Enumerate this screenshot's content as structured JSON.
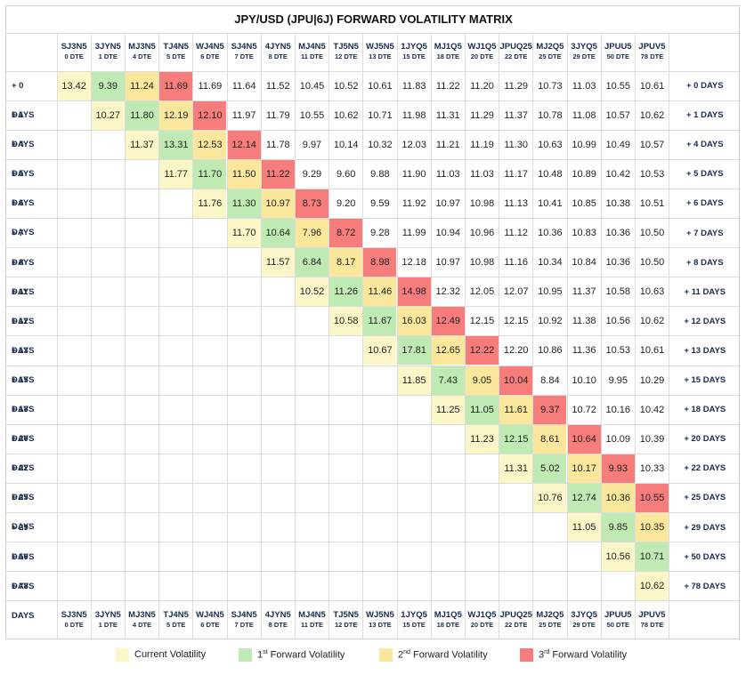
{
  "chart_data": {
    "type": "heatmap",
    "title": "JPY/USD (JPU|6J) FORWARD VOLATILITY MATRIX",
    "columns": [
      {
        "code": "SJ3N5",
        "dte": "0 DTE"
      },
      {
        "code": "3JYN5",
        "dte": "1 DTE"
      },
      {
        "code": "MJ3N5",
        "dte": "4 DTE"
      },
      {
        "code": "TJ4N5",
        "dte": "5 DTE"
      },
      {
        "code": "WJ4N5",
        "dte": "6 DTE"
      },
      {
        "code": "SJ4N5",
        "dte": "7 DTE"
      },
      {
        "code": "4JYN5",
        "dte": "8 DTE"
      },
      {
        "code": "MJ4N5",
        "dte": "11 DTE"
      },
      {
        "code": "TJ5N5",
        "dte": "12 DTE"
      },
      {
        "code": "WJ5N5",
        "dte": "13 DTE"
      },
      {
        "code": "1JYQ5",
        "dte": "15 DTE"
      },
      {
        "code": "MJ1Q5",
        "dte": "18 DTE"
      },
      {
        "code": "WJ1Q5",
        "dte": "20 DTE"
      },
      {
        "code": "JPUQ25",
        "dte": "22 DTE"
      },
      {
        "code": "MJ2Q5",
        "dte": "25 DTE"
      },
      {
        "code": "3JYQ5",
        "dte": "29 DTE"
      },
      {
        "code": "JPUU5",
        "dte": "50 DTE"
      },
      {
        "code": "JPUV5",
        "dte": "78 DTE"
      }
    ],
    "rows": [
      "+ 0 DAYS",
      "+ 1 DAYS",
      "+ 4 DAYS",
      "+ 5 DAYS",
      "+ 6 DAYS",
      "+ 7 DAYS",
      "+ 8 DAYS",
      "+ 11 DAYS",
      "+ 12 DAYS",
      "+ 13 DAYS",
      "+ 15 DAYS",
      "+ 18 DAYS",
      "+ 20 DAYS",
      "+ 22 DAYS",
      "+ 25 DAYS",
      "+ 29 DAYS",
      "+ 50 DAYS",
      "+ 78 DAYS"
    ],
    "values": [
      [
        13.42,
        9.39,
        11.24,
        11.69,
        11.69,
        11.64,
        11.52,
        10.45,
        10.52,
        10.61,
        11.83,
        11.22,
        11.2,
        11.29,
        10.73,
        11.03,
        10.55,
        10.61
      ],
      [
        null,
        10.27,
        11.8,
        12.19,
        12.1,
        11.97,
        11.79,
        10.55,
        10.62,
        10.71,
        11.98,
        11.31,
        11.29,
        11.37,
        10.78,
        11.08,
        10.57,
        10.62
      ],
      [
        null,
        null,
        11.37,
        13.31,
        12.53,
        12.14,
        11.78,
        9.97,
        10.14,
        10.32,
        12.03,
        11.21,
        11.19,
        11.3,
        10.63,
        10.99,
        10.49,
        10.57
      ],
      [
        null,
        null,
        null,
        11.77,
        11.7,
        11.5,
        11.22,
        9.29,
        9.6,
        9.88,
        11.9,
        11.03,
        11.03,
        11.17,
        10.48,
        10.89,
        10.42,
        10.53
      ],
      [
        null,
        null,
        null,
        null,
        11.76,
        11.3,
        10.97,
        8.73,
        9.2,
        9.59,
        11.92,
        10.97,
        10.98,
        11.13,
        10.41,
        10.85,
        10.38,
        10.51
      ],
      [
        null,
        null,
        null,
        null,
        null,
        11.7,
        10.64,
        7.96,
        8.72,
        9.28,
        11.99,
        10.94,
        10.96,
        11.12,
        10.36,
        10.83,
        10.36,
        10.5
      ],
      [
        null,
        null,
        null,
        null,
        null,
        null,
        11.57,
        6.84,
        8.17,
        8.98,
        12.18,
        10.97,
        10.98,
        11.16,
        10.34,
        10.84,
        10.36,
        10.5
      ],
      [
        null,
        null,
        null,
        null,
        null,
        null,
        null,
        10.52,
        11.26,
        11.46,
        14.98,
        12.32,
        12.05,
        12.07,
        10.95,
        11.37,
        10.58,
        10.63
      ],
      [
        null,
        null,
        null,
        null,
        null,
        null,
        null,
        null,
        10.58,
        11.67,
        16.03,
        12.49,
        12.15,
        12.15,
        10.92,
        11.38,
        10.56,
        10.62
      ],
      [
        null,
        null,
        null,
        null,
        null,
        null,
        null,
        null,
        null,
        10.67,
        17.81,
        12.65,
        12.22,
        12.2,
        10.86,
        11.36,
        10.53,
        10.61
      ],
      [
        null,
        null,
        null,
        null,
        null,
        null,
        null,
        null,
        null,
        null,
        11.85,
        7.43,
        9.05,
        10.04,
        8.84,
        10.1,
        9.95,
        10.29
      ],
      [
        null,
        null,
        null,
        null,
        null,
        null,
        null,
        null,
        null,
        null,
        null,
        11.25,
        11.05,
        11.61,
        9.37,
        10.72,
        10.16,
        10.42
      ],
      [
        null,
        null,
        null,
        null,
        null,
        null,
        null,
        null,
        null,
        null,
        null,
        null,
        11.23,
        12.15,
        8.61,
        10.64,
        10.09,
        10.39
      ],
      [
        null,
        null,
        null,
        null,
        null,
        null,
        null,
        null,
        null,
        null,
        null,
        null,
        null,
        11.31,
        5.02,
        10.17,
        9.93,
        10.33
      ],
      [
        null,
        null,
        null,
        null,
        null,
        null,
        null,
        null,
        null,
        null,
        null,
        null,
        null,
        null,
        10.76,
        12.74,
        10.36,
        10.55
      ],
      [
        null,
        null,
        null,
        null,
        null,
        null,
        null,
        null,
        null,
        null,
        null,
        null,
        null,
        null,
        null,
        11.05,
        9.85,
        10.35
      ],
      [
        null,
        null,
        null,
        null,
        null,
        null,
        null,
        null,
        null,
        null,
        null,
        null,
        null,
        null,
        null,
        null,
        10.56,
        10.71
      ],
      [
        null,
        null,
        null,
        null,
        null,
        null,
        null,
        null,
        null,
        null,
        null,
        null,
        null,
        null,
        null,
        null,
        null,
        10.62
      ]
    ],
    "legend": [
      {
        "label_main": "Current Volatility",
        "sup": "",
        "label_rest": "",
        "color": "#fbf6c8"
      },
      {
        "label_main": "1",
        "sup": "st",
        "label_rest": " Forward Volatility",
        "color": "#bfeab4"
      },
      {
        "label_main": "2",
        "sup": "nd",
        "label_rest": " Forward Volatility",
        "color": "#fbe79b"
      },
      {
        "label_main": "3",
        "sup": "rd",
        "label_rest": " Forward Volatility",
        "color": "#f77c7c"
      }
    ]
  }
}
